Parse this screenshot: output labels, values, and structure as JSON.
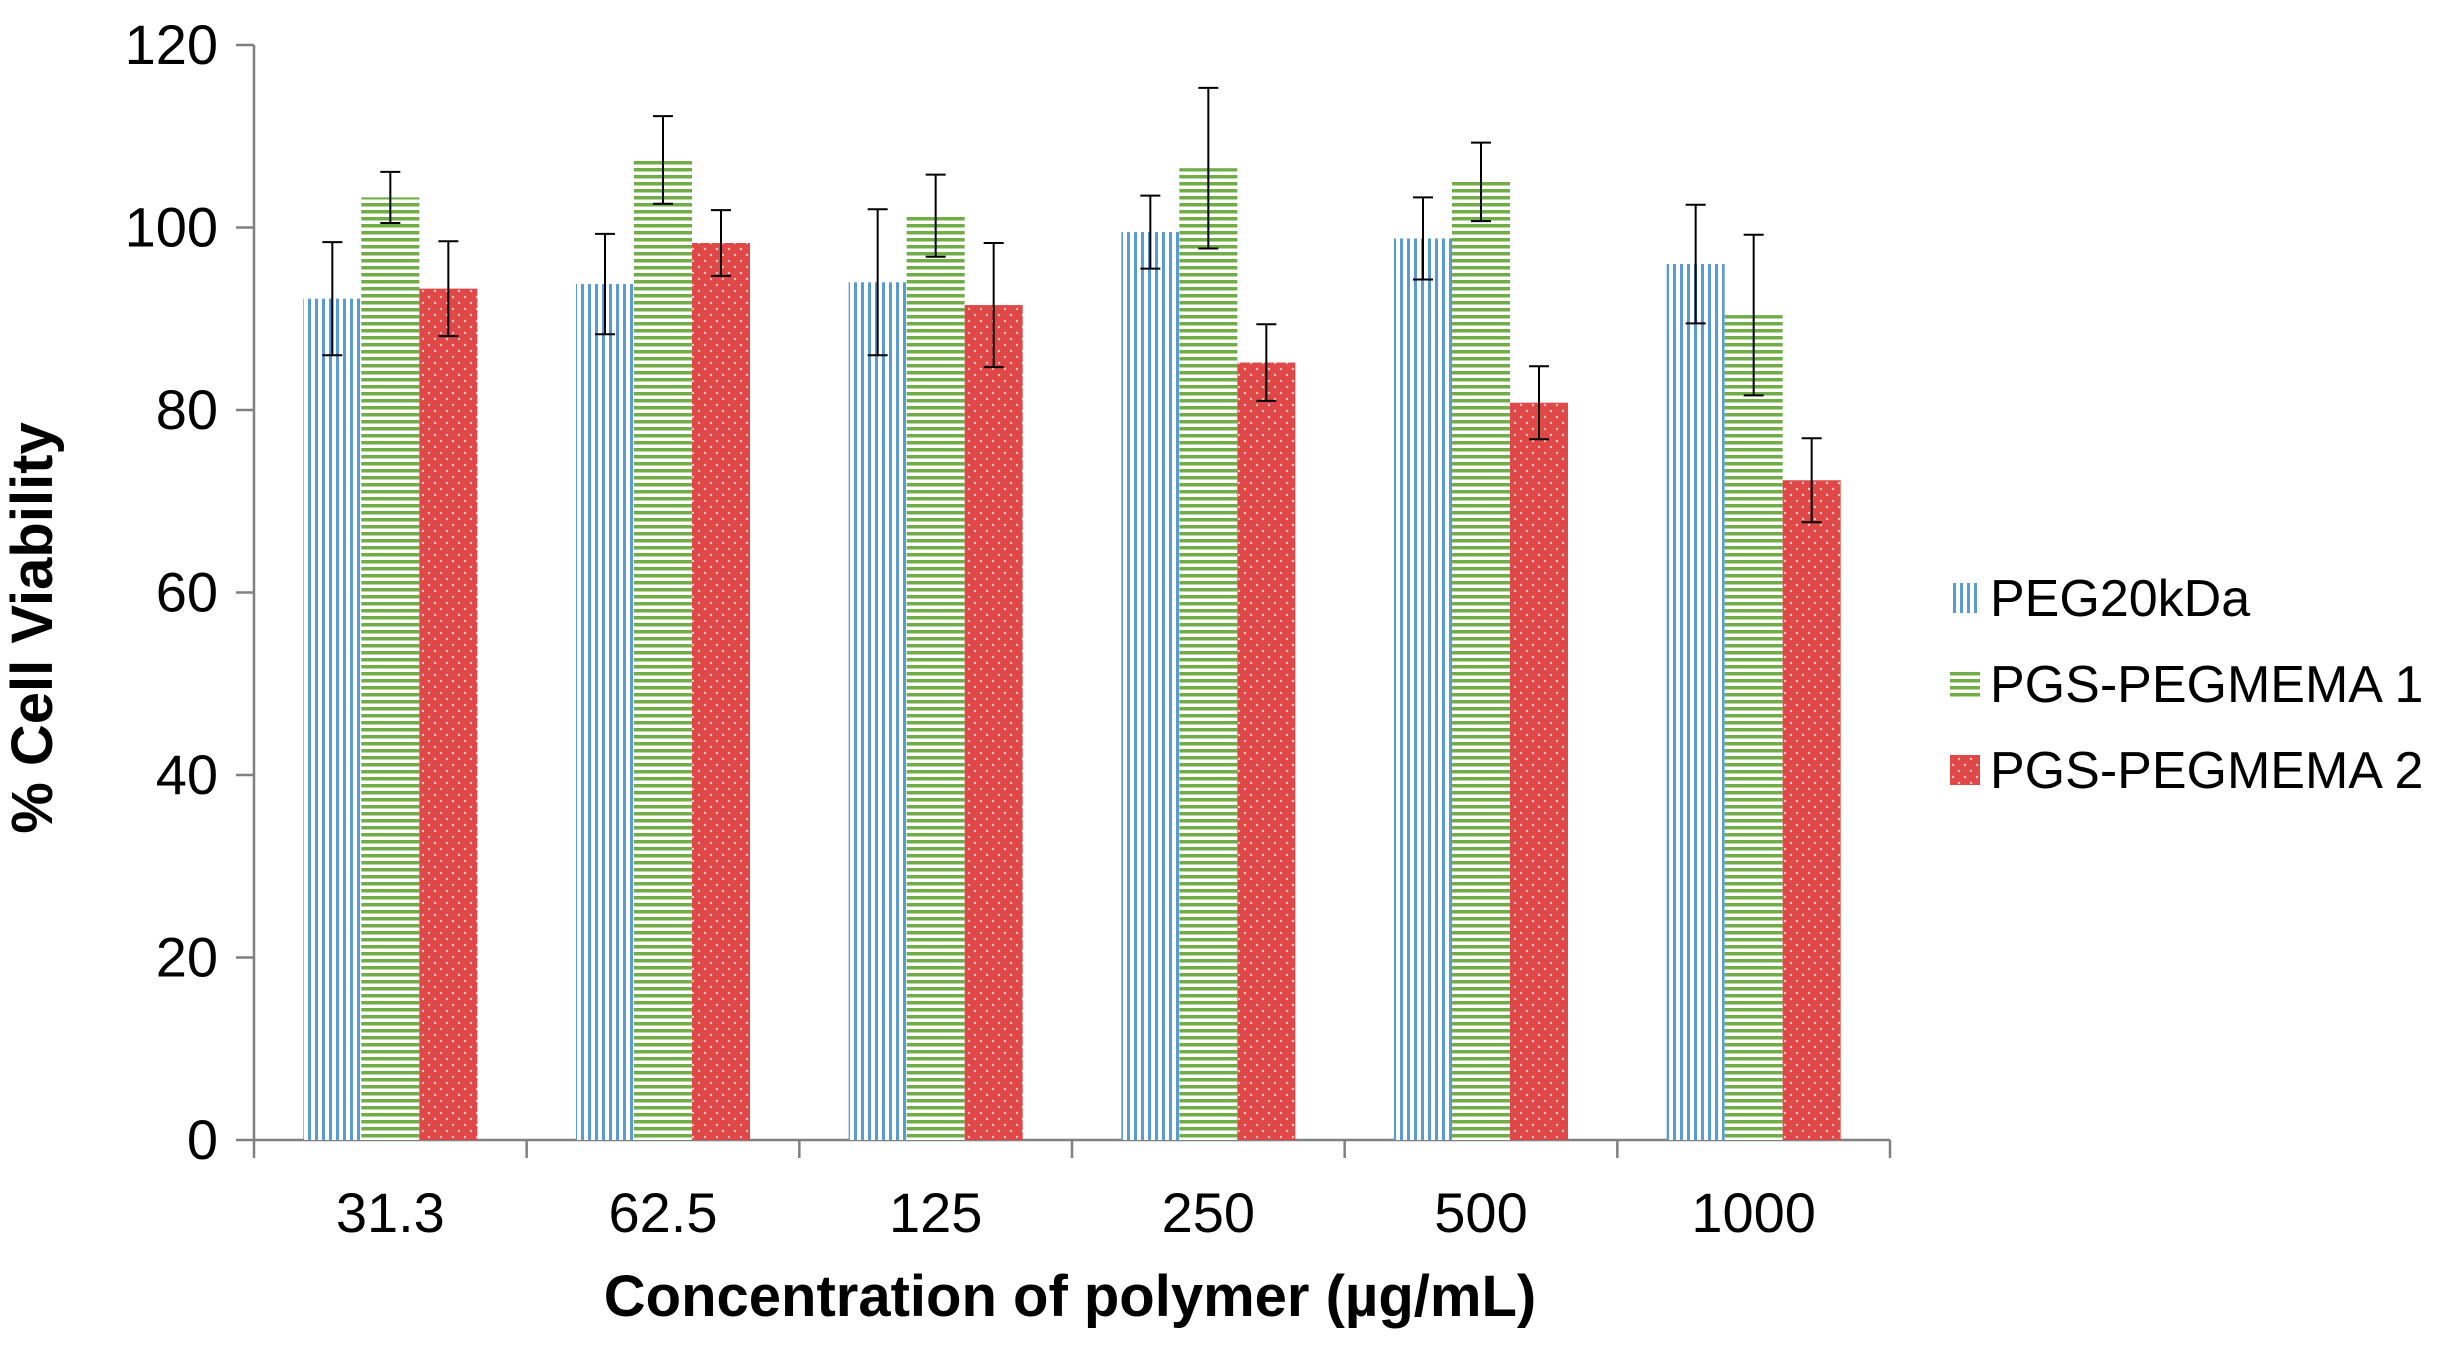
{
  "chart_data": {
    "type": "bar",
    "title": "",
    "xlabel": "Concentration of polymer (µg/mL)",
    "ylabel": "% Cell Viability",
    "ylim": [
      0,
      120
    ],
    "yticks": [
      0,
      20,
      40,
      60,
      80,
      100,
      120
    ],
    "categories": [
      "31.3",
      "62.5",
      "125",
      "250",
      "500",
      "1000"
    ],
    "grid": false,
    "legend_position": "right",
    "series": [
      {
        "name": "PEG20kDa",
        "pattern": "vertical-lines",
        "color": "#5b9bd5",
        "values": [
          92.2,
          93.8,
          94.0,
          99.5,
          98.8,
          96.0
        ],
        "errors": [
          6.2,
          5.5,
          8.0,
          4.0,
          4.5,
          6.5
        ]
      },
      {
        "name": "PGS-PEGMEMA 1",
        "pattern": "horizontal-lines",
        "color": "#70ad47",
        "values": [
          103.3,
          107.4,
          101.3,
          106.5,
          105.0,
          90.4
        ],
        "errors": [
          2.8,
          4.8,
          4.5,
          8.8,
          4.3,
          8.8
        ]
      },
      {
        "name": "PGS-PEGMEMA 2",
        "pattern": "dots",
        "color": "#e04848",
        "values": [
          93.3,
          98.3,
          91.5,
          85.2,
          80.8,
          72.3
        ],
        "errors": [
          5.2,
          3.6,
          6.8,
          4.2,
          4.0,
          4.6
        ]
      }
    ]
  }
}
